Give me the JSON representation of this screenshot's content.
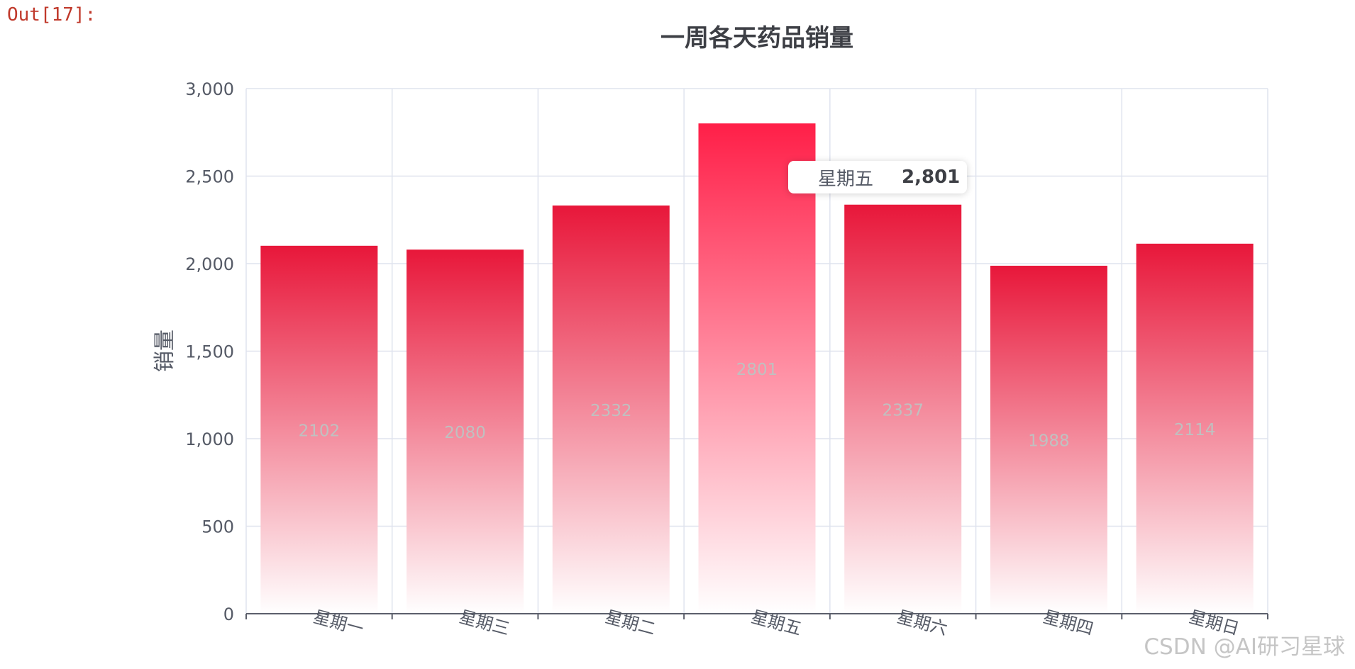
{
  "cell_label": "Out[17]:",
  "watermark": "CSDN @AI研习星球",
  "tooltip": {
    "category": "星期五",
    "value": "2,801"
  },
  "colors": {
    "bar_top": "#e8173a",
    "bar_top_highlight": "#ff1f48",
    "bar_bottom": "#ffffff",
    "grid": "#dfe3ee",
    "axis": "#5b5f6b",
    "tick_label": "#555a66",
    "data_label": "#c0c0c0",
    "title": "#3d3f45"
  },
  "chart_data": {
    "type": "bar",
    "title": "一周各天药品销量",
    "xlabel": "",
    "ylabel": "销量",
    "categories": [
      "星期一",
      "星期三",
      "星期二",
      "星期五",
      "星期六",
      "星期四",
      "星期日"
    ],
    "values": [
      2102,
      2080,
      2332,
      2801,
      2337,
      1988,
      2114
    ],
    "ylim": [
      0,
      3000
    ],
    "yticks": [
      0,
      500,
      1000,
      1500,
      2000,
      2500,
      3000
    ],
    "ytick_labels": [
      "0",
      "500",
      "1,000",
      "1,500",
      "2,000",
      "2,500",
      "3,000"
    ],
    "grid": true,
    "highlighted_category": "星期五",
    "data_labels": true
  }
}
